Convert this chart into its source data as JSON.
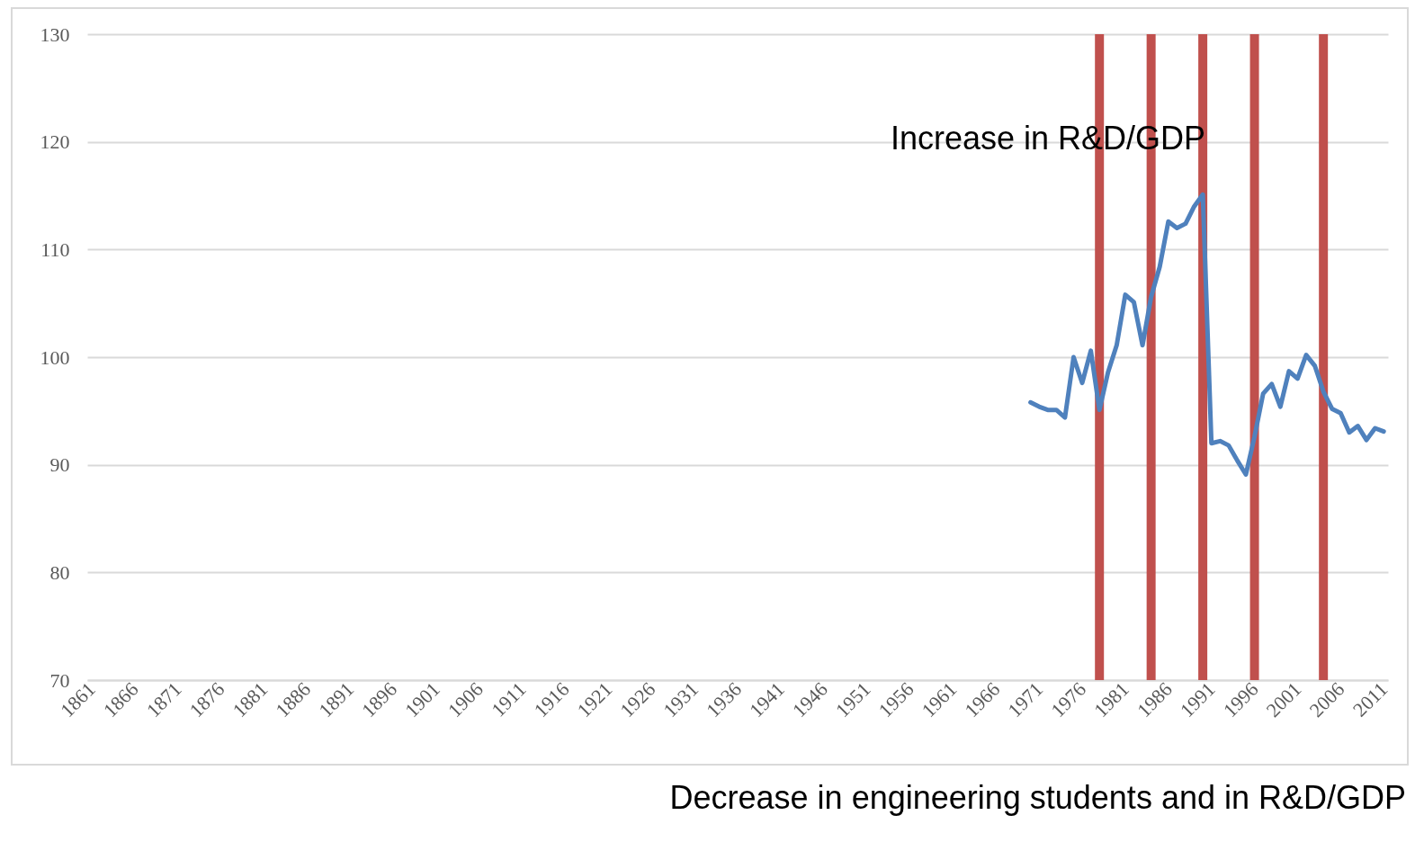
{
  "chart_data": {
    "type": "line",
    "x": [
      1970,
      1971,
      1972,
      1973,
      1974,
      1975,
      1976,
      1977,
      1978,
      1979,
      1980,
      1981,
      1982,
      1983,
      1984,
      1985,
      1986,
      1987,
      1988,
      1989,
      1990,
      1991,
      1992,
      1993,
      1994,
      1995,
      1996,
      1997,
      1998,
      1999,
      2000,
      2001,
      2002,
      2003,
      2004,
      2005,
      2006,
      2007,
      2008,
      2009,
      2010,
      2011
    ],
    "series": [
      {
        "color": "#4f81bd",
        "values": [
          95.8,
          95.4,
          95.1,
          95.1,
          94.4,
          100.0,
          97.6,
          100.6,
          95.1,
          98.6,
          101.1,
          105.8,
          105.1,
          101.1,
          105.6,
          108.4,
          112.6,
          112.0,
          112.4,
          114.0,
          115.1,
          92.0,
          92.2,
          91.8,
          90.4,
          89.1,
          92.6,
          96.6,
          97.5,
          95.4,
          98.7,
          98.0,
          100.2,
          99.2,
          96.8,
          95.2,
          94.8,
          93.0,
          93.6,
          92.3,
          93.4,
          93.1
        ]
      }
    ],
    "xlim": [
      1860.5,
      2011.5
    ],
    "xticks": [
      1861,
      1866,
      1871,
      1876,
      1881,
      1886,
      1891,
      1896,
      1901,
      1906,
      1911,
      1916,
      1921,
      1926,
      1931,
      1936,
      1941,
      1946,
      1951,
      1956,
      1961,
      1966,
      1971,
      1976,
      1981,
      1986,
      1991,
      1996,
      2001,
      2006,
      2011
    ],
    "ylim": [
      70,
      130
    ],
    "yticks": [
      70,
      80,
      90,
      100,
      110,
      120,
      130
    ],
    "grid": "y",
    "marker": "none",
    "line_style": "solid",
    "ref_lines": [
      {
        "axis": "x",
        "value": 1978,
        "color": "#c0504d"
      },
      {
        "axis": "x",
        "value": 1984,
        "color": "#c0504d"
      },
      {
        "axis": "x",
        "value": 1990,
        "color": "#c0504d"
      },
      {
        "axis": "x",
        "value": 1996,
        "color": "#c0504d"
      },
      {
        "axis": "x",
        "value": 2004,
        "color": "#c0504d"
      }
    ],
    "annotations": [
      "Increase in R&D/GDP",
      "Decrease in engineering students and in R&D/GDP"
    ]
  }
}
